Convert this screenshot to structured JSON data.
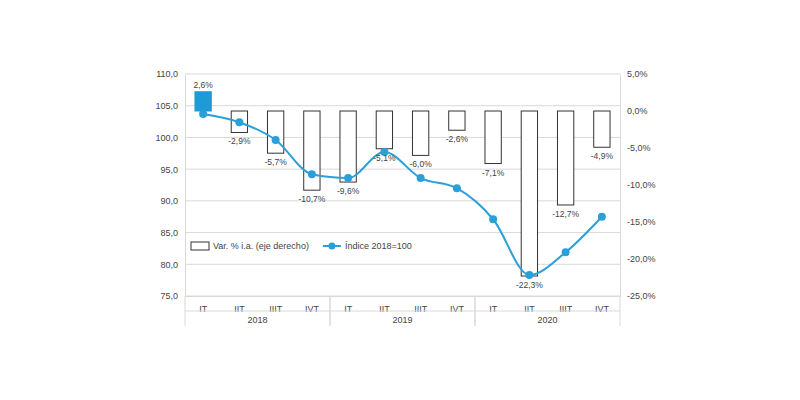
{
  "chart_data": {
    "type": "bar",
    "categories": [
      "IT",
      "IIT",
      "IIIT",
      "IVT",
      "IT",
      "IIT",
      "IIIT",
      "IVT",
      "IT",
      "IIT",
      "IIIT",
      "IVT"
    ],
    "category_groups": [
      "2018",
      "2018",
      "2018",
      "2018",
      "2019",
      "2019",
      "2019",
      "2019",
      "2020",
      "2020",
      "2020",
      "2020"
    ],
    "series": [
      {
        "name": "Var. % i.a. (eje derecho)",
        "type": "bar",
        "axis": "y2",
        "colors": [
          "#1e9bd6",
          "#ffffff",
          "#ffffff",
          "#ffffff",
          "#ffffff",
          "#ffffff",
          "#ffffff",
          "#ffffff",
          "#ffffff",
          "#ffffff",
          "#ffffff",
          "#ffffff"
        ],
        "values": [
          2.6,
          -2.9,
          -5.7,
          -10.7,
          -9.6,
          -5.1,
          -6.0,
          -2.6,
          -7.1,
          -22.3,
          -12.7,
          -4.9
        ],
        "value_labels": [
          "2,6%",
          "-2,9%",
          "-5,7%",
          "-10,7%",
          "-9,6%",
          "-5,1%",
          "-6,0%",
          "-2,6%",
          "-7,1%",
          "-22,3%",
          "-12,7%",
          "-4,9%"
        ],
        "data_labels": true
      },
      {
        "name": "Índice 2018=100",
        "type": "line",
        "color": "#2a9fd8",
        "marker": "circle",
        "values": [
          103.7,
          102.4,
          99.6,
          94.2,
          93.6,
          97.7,
          93.6,
          92.0,
          87.1,
          78.3,
          81.9,
          87.5
        ]
      }
    ],
    "ylim": [
      75,
      110
    ],
    "yticks": [
      {
        "value": 75,
        "label": "75,0"
      },
      {
        "value": 80,
        "label": "80,0"
      },
      {
        "value": 85,
        "label": "85,0"
      },
      {
        "value": 90,
        "label": "90,0"
      },
      {
        "value": 95,
        "label": "95,0"
      },
      {
        "value": 100,
        "label": "100,0"
      },
      {
        "value": 105,
        "label": "105,0"
      },
      {
        "value": 110,
        "label": "110,0"
      }
    ],
    "y2lim": [
      -25,
      5
    ],
    "y2ticks": [
      {
        "value": -25,
        "label": "-25,0%"
      },
      {
        "value": -20,
        "label": "-20,0%"
      },
      {
        "value": -15,
        "label": "-15,0%"
      },
      {
        "value": -10,
        "label": "-10,0%"
      },
      {
        "value": -5,
        "label": "-5,0%"
      },
      {
        "value": 0,
        "label": "0,0%"
      },
      {
        "value": 5,
        "label": "5,0%"
      }
    ],
    "grid": true,
    "legend": "lower left"
  }
}
